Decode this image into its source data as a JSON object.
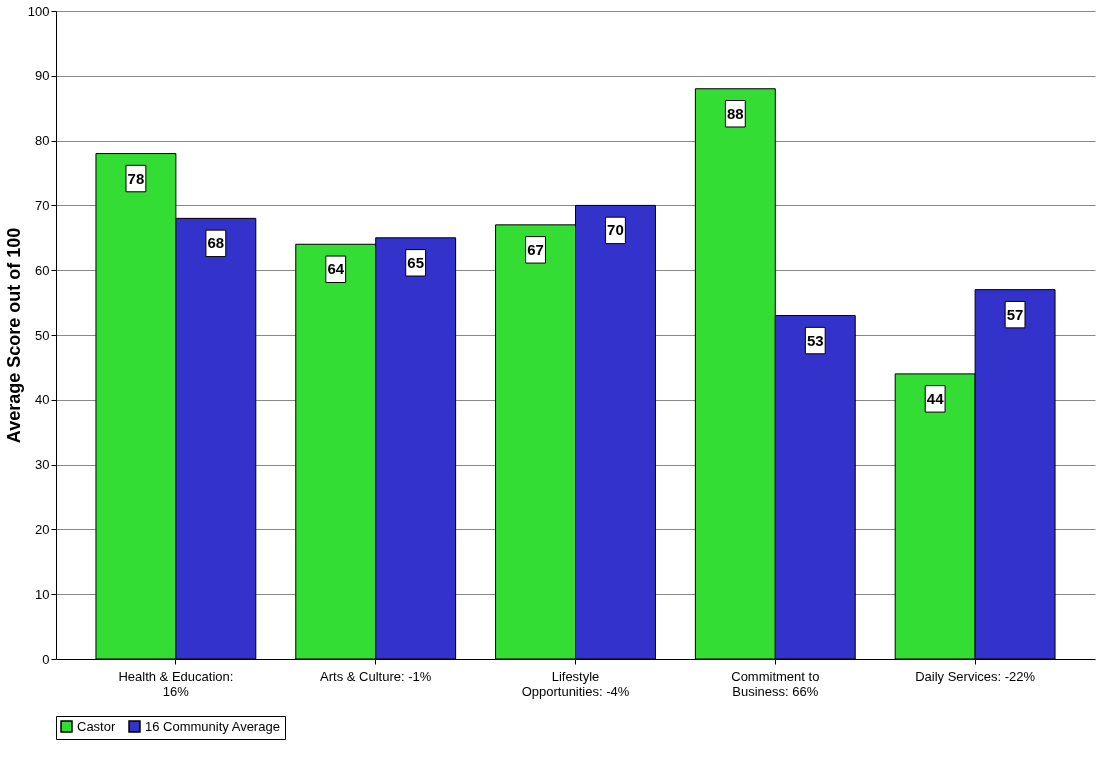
{
  "chart_data": {
    "type": "bar",
    "ylabel": "Average Score out of 100",
    "categories": [
      "Health & Education: 16%",
      "Arts & Culture: -1%",
      "Lifestyle Opportunities: -4%",
      "Commitment to Business: 66%",
      "Daily Services: -22%"
    ],
    "series": [
      {
        "name": "Castor",
        "color": "#33dd33",
        "values": [
          78,
          64,
          67,
          88,
          44
        ]
      },
      {
        "name": "16 Community Average",
        "color": "#3333cc",
        "values": [
          68,
          65,
          70,
          53,
          57
        ]
      }
    ],
    "ylim": [
      0,
      100
    ],
    "yticks": [
      0,
      10,
      20,
      30,
      40,
      50,
      60,
      70,
      80,
      90,
      100
    ],
    "grid": "y",
    "legend": "bottom",
    "data_labels": true
  }
}
